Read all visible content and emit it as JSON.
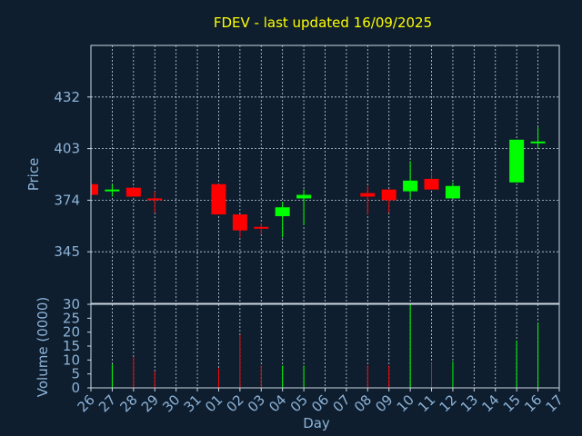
{
  "chart_data": [
    {
      "type": "candlestick",
      "title": "FDEV - last updated 16/09/2025",
      "ylabel": "Price",
      "ylim": [
        316,
        461
      ],
      "yticks": [
        345,
        374,
        403,
        432
      ],
      "grid": true,
      "x": [
        "26",
        "27",
        "28",
        "29",
        "30",
        "31",
        "01",
        "02",
        "03",
        "04",
        "05",
        "06",
        "07",
        "08",
        "09",
        "10",
        "11",
        "12",
        "13",
        "14",
        "15",
        "16",
        "17"
      ],
      "candles": [
        {
          "x": "26",
          "open": 383,
          "close": 377,
          "high": 383,
          "low": 377
        },
        {
          "x": "27",
          "open": 379,
          "close": 380,
          "high": 383,
          "low": 376
        },
        {
          "x": "28",
          "open": 381,
          "close": 376,
          "high": 381,
          "low": 376
        },
        {
          "x": "29",
          "open": 375,
          "close": 374,
          "high": 379,
          "low": 367
        },
        {
          "x": "01",
          "open": 383,
          "close": 366,
          "high": 383,
          "low": 366
        },
        {
          "x": "02",
          "open": 366,
          "close": 357,
          "high": 366,
          "low": 353
        },
        {
          "x": "03",
          "open": 359,
          "close": 358,
          "high": 361,
          "low": 355
        },
        {
          "x": "04",
          "open": 365,
          "close": 370,
          "high": 373,
          "low": 353
        },
        {
          "x": "05",
          "open": 375,
          "close": 377,
          "high": 380,
          "low": 360
        },
        {
          "x": "08",
          "open": 378,
          "close": 376,
          "high": 382,
          "low": 366
        },
        {
          "x": "09",
          "open": 380,
          "close": 374,
          "high": 380,
          "low": 367
        },
        {
          "x": "10",
          "open": 379,
          "close": 385,
          "high": 396,
          "low": 375
        },
        {
          "x": "11",
          "open": 386,
          "close": 380,
          "high": 390,
          "low": 380
        },
        {
          "x": "12",
          "open": 375,
          "close": 382,
          "high": 384,
          "low": 375
        },
        {
          "x": "15",
          "open": 384,
          "close": 408,
          "high": 408,
          "low": 384
        },
        {
          "x": "16",
          "open": 406,
          "close": 407,
          "high": 415,
          "low": 403
        }
      ]
    },
    {
      "type": "bar",
      "ylabel": "Volume (0000)",
      "xlabel": "Day",
      "ylim": [
        0,
        30
      ],
      "yticks": [
        0,
        5,
        10,
        15,
        20,
        25,
        30
      ],
      "categories": [
        "26",
        "27",
        "28",
        "29",
        "30",
        "31",
        "01",
        "02",
        "03",
        "04",
        "05",
        "06",
        "07",
        "08",
        "09",
        "10",
        "11",
        "12",
        "13",
        "14",
        "15",
        "16",
        "17"
      ],
      "bars": [
        {
          "x": "27",
          "value": 8.5,
          "color": "#00ff00"
        },
        {
          "x": "28",
          "value": 11,
          "color": "#ff0000"
        },
        {
          "x": "29",
          "value": 6,
          "color": "#ff0000"
        },
        {
          "x": "01",
          "value": 7,
          "color": "#ff0000"
        },
        {
          "x": "02",
          "value": 19,
          "color": "#ff0000"
        },
        {
          "x": "03",
          "value": 8,
          "color": "#ff0000"
        },
        {
          "x": "04",
          "value": 8,
          "color": "#00ff00"
        },
        {
          "x": "05",
          "value": 8,
          "color": "#00ff00"
        },
        {
          "x": "08",
          "value": 8,
          "color": "#ff0000"
        },
        {
          "x": "09",
          "value": 8,
          "color": "#ff0000"
        },
        {
          "x": "10",
          "value": 30,
          "color": "#00ff00"
        },
        {
          "x": "11",
          "value": 9,
          "color": "#ff0000"
        },
        {
          "x": "12",
          "value": 9.5,
          "color": "#00ff00"
        },
        {
          "x": "15",
          "value": 17,
          "color": "#00ff00"
        },
        {
          "x": "16",
          "value": 23.5,
          "color": "#00ff00"
        }
      ]
    }
  ],
  "colors": {
    "up": "#00ff00",
    "down": "#ff0000",
    "title": "#ffff00",
    "axis_text": "#8db3d8",
    "background": "#0e1e2e"
  }
}
